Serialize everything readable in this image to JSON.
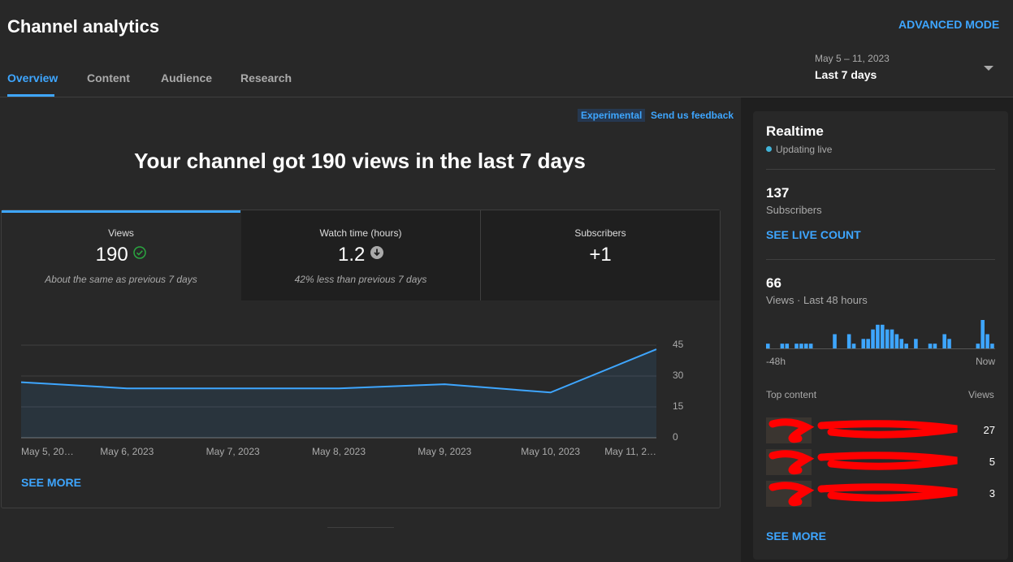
{
  "header": {
    "title": "Channel analytics",
    "advanced_mode": "ADVANCED MODE",
    "tabs": [
      "Overview",
      "Content",
      "Audience",
      "Research"
    ],
    "date_range": "May 5 – 11, 2023",
    "period": "Last 7 days"
  },
  "overview": {
    "badge": "Experimental",
    "feedback": "Send us feedback",
    "headline": "Your channel got 190 views in the last 7 days",
    "metrics": [
      {
        "label": "Views",
        "value": "190",
        "note": "About the same as previous 7 days"
      },
      {
        "label": "Watch time (hours)",
        "value": "1.2",
        "note": "42% less than previous 7 days"
      },
      {
        "label": "Subscribers",
        "value": "+1"
      }
    ],
    "chart": {
      "type": "line",
      "categories": [
        "May 5, 20…",
        "May 6, 2023",
        "May 7, 2023",
        "May 8, 2023",
        "May 9, 2023",
        "May 10, 2023",
        "May 11, 2…"
      ],
      "values": [
        27,
        24,
        24,
        24,
        26,
        22,
        43
      ],
      "color": "#3ea6ff",
      "ylim": [
        0,
        45
      ],
      "yticks": [
        0,
        15,
        30,
        45
      ],
      "grid": true
    },
    "see_more": "SEE MORE"
  },
  "realtime": {
    "title": "Realtime",
    "status": "Updating live",
    "subscribers": "137",
    "subscribers_label": "Subscribers",
    "live_count": "SEE LIVE COUNT",
    "views": "66",
    "views_label": "Views · Last 48 hours",
    "chart": {
      "type": "bar",
      "values": [
        1,
        0,
        0,
        1,
        1,
        0,
        1,
        1,
        1,
        1,
        0,
        0,
        0,
        0,
        3,
        0,
        0,
        3,
        1,
        0,
        2,
        2,
        4,
        5,
        5,
        4,
        4,
        3,
        2,
        1,
        0,
        2,
        0,
        0,
        1,
        1,
        0,
        3,
        2,
        0,
        0,
        0,
        0,
        0,
        1,
        6,
        3,
        1
      ],
      "color": "#3ea6ff",
      "start_label": "-48h",
      "end_label": "Now"
    },
    "top_content": {
      "title": "Top content",
      "column": "Views",
      "values": [
        27,
        5,
        3
      ]
    },
    "see_more": "SEE MORE"
  }
}
